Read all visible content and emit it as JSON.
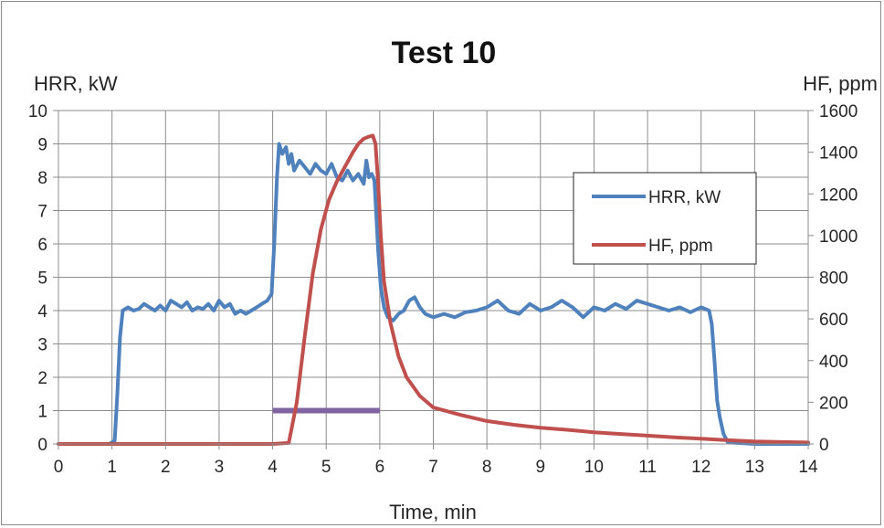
{
  "chart_data": {
    "type": "line",
    "title": "Test 10",
    "xlabel": "Time, min",
    "ylabel_left": "HRR, kW",
    "ylabel_right": "HF, ppm",
    "xlim": [
      0,
      14
    ],
    "ylim_left": [
      0,
      10
    ],
    "ylim_right": [
      0,
      1600
    ],
    "x_ticks": [
      "0",
      "1",
      "2",
      "3",
      "4",
      "5",
      "6",
      "7",
      "8",
      "9",
      "10",
      "11",
      "12",
      "13",
      "14"
    ],
    "y_left_ticks": [
      "0",
      "1",
      "2",
      "3",
      "4",
      "5",
      "6",
      "7",
      "8",
      "9",
      "10"
    ],
    "y_right_ticks": [
      "0",
      "200",
      "400",
      "600",
      "800",
      "1000",
      "1200",
      "1400",
      "1600"
    ],
    "grid": true,
    "legend_position": "right",
    "series": [
      {
        "name": "HRR, kW",
        "axis": "left",
        "color": "#4f81bd",
        "points": [
          [
            0,
            0
          ],
          [
            0.5,
            0
          ],
          [
            0.95,
            0
          ],
          [
            1.05,
            0.1
          ],
          [
            1.1,
            1.5
          ],
          [
            1.15,
            3.2
          ],
          [
            1.2,
            4.0
          ],
          [
            1.3,
            4.1
          ],
          [
            1.4,
            4.0
          ],
          [
            1.5,
            4.05
          ],
          [
            1.6,
            4.2
          ],
          [
            1.7,
            4.1
          ],
          [
            1.8,
            4.0
          ],
          [
            1.9,
            4.15
          ],
          [
            2.0,
            4.0
          ],
          [
            2.1,
            4.3
          ],
          [
            2.2,
            4.2
          ],
          [
            2.3,
            4.1
          ],
          [
            2.4,
            4.25
          ],
          [
            2.5,
            4.0
          ],
          [
            2.6,
            4.1
          ],
          [
            2.7,
            4.05
          ],
          [
            2.8,
            4.2
          ],
          [
            2.9,
            4.0
          ],
          [
            3.0,
            4.3
          ],
          [
            3.1,
            4.1
          ],
          [
            3.2,
            4.2
          ],
          [
            3.3,
            3.9
          ],
          [
            3.4,
            4.0
          ],
          [
            3.5,
            3.9
          ],
          [
            3.6,
            4.0
          ],
          [
            3.7,
            4.1
          ],
          [
            3.8,
            4.2
          ],
          [
            3.9,
            4.3
          ],
          [
            3.98,
            4.5
          ],
          [
            4.03,
            6.0
          ],
          [
            4.08,
            8.0
          ],
          [
            4.12,
            9.0
          ],
          [
            4.18,
            8.7
          ],
          [
            4.25,
            8.9
          ],
          [
            4.3,
            8.4
          ],
          [
            4.35,
            8.7
          ],
          [
            4.4,
            8.2
          ],
          [
            4.5,
            8.5
          ],
          [
            4.6,
            8.3
          ],
          [
            4.7,
            8.1
          ],
          [
            4.8,
            8.4
          ],
          [
            4.9,
            8.2
          ],
          [
            5.0,
            8.1
          ],
          [
            5.1,
            8.4
          ],
          [
            5.2,
            8.0
          ],
          [
            5.3,
            7.9
          ],
          [
            5.4,
            8.2
          ],
          [
            5.5,
            7.9
          ],
          [
            5.6,
            8.1
          ],
          [
            5.7,
            7.8
          ],
          [
            5.75,
            8.5
          ],
          [
            5.8,
            8.0
          ],
          [
            5.85,
            8.1
          ],
          [
            5.9,
            7.9
          ],
          [
            5.93,
            7.0
          ],
          [
            5.97,
            5.8
          ],
          [
            6.02,
            4.7
          ],
          [
            6.08,
            4.1
          ],
          [
            6.15,
            3.8
          ],
          [
            6.25,
            3.7
          ],
          [
            6.35,
            3.9
          ],
          [
            6.45,
            4.0
          ],
          [
            6.55,
            4.3
          ],
          [
            6.65,
            4.4
          ],
          [
            6.75,
            4.1
          ],
          [
            6.85,
            3.9
          ],
          [
            7.0,
            3.8
          ],
          [
            7.2,
            3.9
          ],
          [
            7.4,
            3.8
          ],
          [
            7.6,
            3.95
          ],
          [
            7.8,
            4.0
          ],
          [
            8.0,
            4.1
          ],
          [
            8.2,
            4.3
          ],
          [
            8.4,
            4.0
          ],
          [
            8.6,
            3.9
          ],
          [
            8.8,
            4.2
          ],
          [
            9.0,
            4.0
          ],
          [
            9.2,
            4.1
          ],
          [
            9.4,
            4.3
          ],
          [
            9.6,
            4.1
          ],
          [
            9.8,
            3.8
          ],
          [
            10.0,
            4.1
          ],
          [
            10.2,
            4.0
          ],
          [
            10.4,
            4.2
          ],
          [
            10.6,
            4.05
          ],
          [
            10.8,
            4.3
          ],
          [
            11.0,
            4.2
          ],
          [
            11.2,
            4.1
          ],
          [
            11.4,
            4.0
          ],
          [
            11.6,
            4.1
          ],
          [
            11.8,
            3.95
          ],
          [
            12.0,
            4.1
          ],
          [
            12.15,
            4.0
          ],
          [
            12.2,
            3.6
          ],
          [
            12.25,
            2.5
          ],
          [
            12.3,
            1.3
          ],
          [
            12.35,
            0.8
          ],
          [
            12.42,
            0.3
          ],
          [
            12.5,
            0.05
          ],
          [
            13.0,
            0
          ],
          [
            13.5,
            0
          ],
          [
            14.0,
            0
          ]
        ]
      },
      {
        "name": "HF, ppm",
        "axis": "right",
        "color": "#c0504d",
        "points": [
          [
            0,
            0
          ],
          [
            4.0,
            0
          ],
          [
            4.3,
            5
          ],
          [
            4.45,
            200
          ],
          [
            4.6,
            520
          ],
          [
            4.75,
            820
          ],
          [
            4.9,
            1030
          ],
          [
            5.05,
            1170
          ],
          [
            5.2,
            1260
          ],
          [
            5.35,
            1330
          ],
          [
            5.5,
            1400
          ],
          [
            5.6,
            1440
          ],
          [
            5.7,
            1465
          ],
          [
            5.8,
            1475
          ],
          [
            5.87,
            1480
          ],
          [
            5.92,
            1440
          ],
          [
            5.97,
            1250
          ],
          [
            6.02,
            1000
          ],
          [
            6.08,
            780
          ],
          [
            6.2,
            580
          ],
          [
            6.35,
            420
          ],
          [
            6.5,
            320
          ],
          [
            6.75,
            230
          ],
          [
            7.0,
            175
          ],
          [
            7.5,
            140
          ],
          [
            8.0,
            110
          ],
          [
            8.5,
            92
          ],
          [
            9.0,
            78
          ],
          [
            9.5,
            68
          ],
          [
            10.0,
            56
          ],
          [
            10.5,
            48
          ],
          [
            11.0,
            40
          ],
          [
            11.5,
            32
          ],
          [
            12.0,
            25
          ],
          [
            12.5,
            18
          ],
          [
            13.0,
            12
          ],
          [
            13.5,
            9
          ],
          [
            14.0,
            7
          ]
        ]
      }
    ],
    "highlight_bar": {
      "x_start": 4.0,
      "x_end": 6.0,
      "y_left": 1.0,
      "color": "#8064a2"
    }
  }
}
